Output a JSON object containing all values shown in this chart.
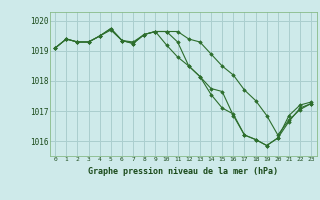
{
  "background_color": "#ceeaea",
  "grid_color": "#aacece",
  "line_color": "#2d6e2d",
  "marker_color": "#2d6e2d",
  "text_color": "#1a4a1a",
  "xlabel": "Graphe pression niveau de la mer (hPa)",
  "ylim": [
    1015.5,
    1020.3
  ],
  "xlim": [
    -0.5,
    23.5
  ],
  "yticks": [
    1016,
    1017,
    1018,
    1019,
    1020
  ],
  "xticks": [
    0,
    1,
    2,
    3,
    4,
    5,
    6,
    7,
    8,
    9,
    10,
    11,
    12,
    13,
    14,
    15,
    16,
    17,
    18,
    19,
    20,
    21,
    22,
    23
  ],
  "series": [
    [
      1019.1,
      1019.4,
      1019.3,
      1019.3,
      1019.5,
      1019.7,
      1019.35,
      1019.3,
      1019.55,
      1019.65,
      1019.65,
      1019.3,
      1018.5,
      1018.15,
      1017.75,
      1017.65,
      1016.85,
      1016.2,
      1016.05,
      1015.85,
      1016.1,
      1016.85,
      1017.2,
      1017.3
    ],
    [
      1019.1,
      1019.4,
      1019.3,
      1019.3,
      1019.5,
      1019.75,
      1019.35,
      1019.25,
      1019.55,
      1019.65,
      1019.2,
      1018.8,
      1018.5,
      1018.15,
      1017.55,
      1017.1,
      1016.9,
      1016.2,
      1016.05,
      1015.85,
      1016.1,
      1016.65,
      1017.1,
      1017.25
    ],
    [
      1019.1,
      1019.4,
      1019.3,
      1019.3,
      1019.5,
      1019.75,
      1019.35,
      1019.25,
      1019.55,
      1019.65,
      1019.65,
      1019.65,
      1019.4,
      1019.3,
      1018.9,
      1018.5,
      1018.2,
      1017.7,
      1017.35,
      1016.85,
      1016.2,
      1016.7,
      1017.05,
      1017.25
    ]
  ],
  "figsize": [
    3.2,
    2.0
  ],
  "dpi": 100
}
